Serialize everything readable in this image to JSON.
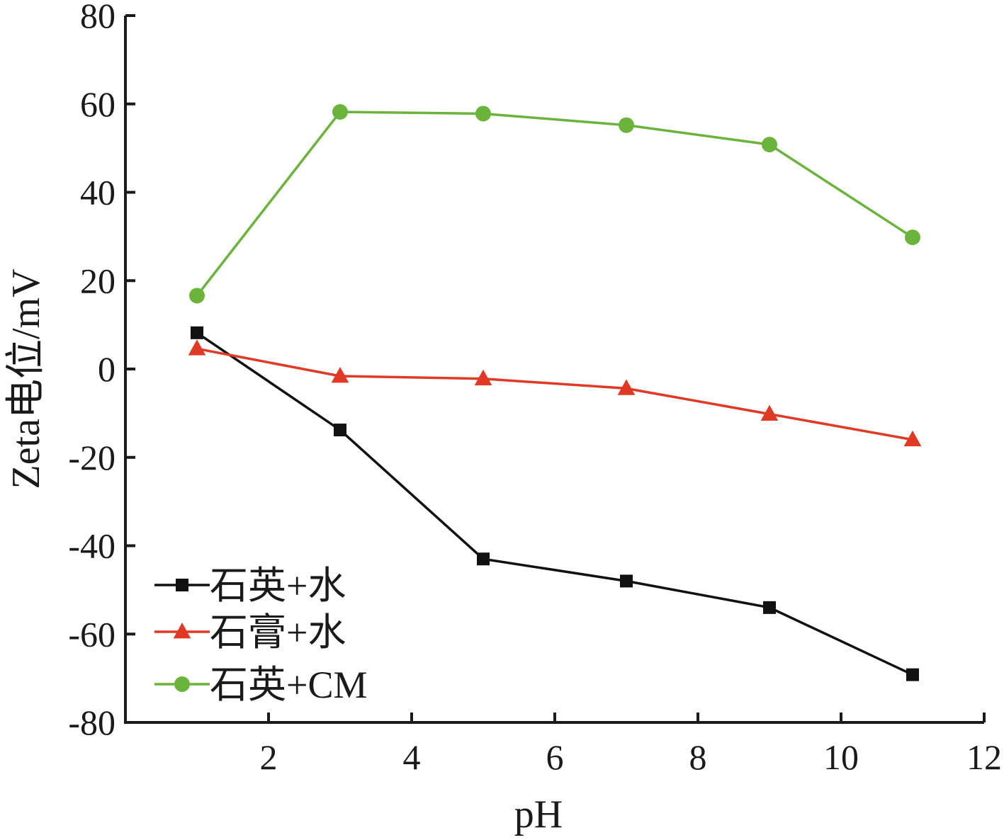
{
  "chart_data": {
    "type": "line",
    "xlabel": "pH",
    "ylabel": "Zeta电位/mV",
    "xlim": [
      0,
      12
    ],
    "ylim": [
      -80,
      80
    ],
    "xticks": [
      2,
      4,
      6,
      8,
      10,
      12
    ],
    "yticks": [
      80,
      60,
      40,
      20,
      0,
      -20,
      -40,
      -60,
      -80
    ],
    "x_tick_labels": [
      "2",
      "4",
      "6",
      "8",
      "10",
      "12"
    ],
    "y_tick_labels": [
      "80",
      "60",
      "40",
      "20",
      "0",
      "-20",
      "-40",
      "-60",
      "-80"
    ],
    "grid": false,
    "legend": "bottom-left",
    "series": [
      {
        "name": "石英+水",
        "marker": "square",
        "color": "#111111",
        "points": [
          [
            1,
            8.2
          ],
          [
            3,
            -13.8
          ],
          [
            5,
            -43.0
          ],
          [
            7,
            -48.0
          ],
          [
            9,
            -54.0
          ],
          [
            11,
            -69.2
          ]
        ]
      },
      {
        "name": "石膏+水",
        "marker": "triangle",
        "color": "#e03a26",
        "points": [
          [
            1,
            4.6
          ],
          [
            3,
            -1.6
          ],
          [
            5,
            -2.2
          ],
          [
            7,
            -4.4
          ],
          [
            9,
            -10.2
          ],
          [
            11,
            -16.0
          ]
        ]
      },
      {
        "name": "石英+CM",
        "marker": "circle",
        "color": "#6bb43c",
        "points": [
          [
            1,
            16.6
          ],
          [
            3,
            58.2
          ],
          [
            5,
            57.8
          ],
          [
            7,
            55.2
          ],
          [
            9,
            50.8
          ],
          [
            11,
            29.8
          ]
        ]
      }
    ]
  }
}
